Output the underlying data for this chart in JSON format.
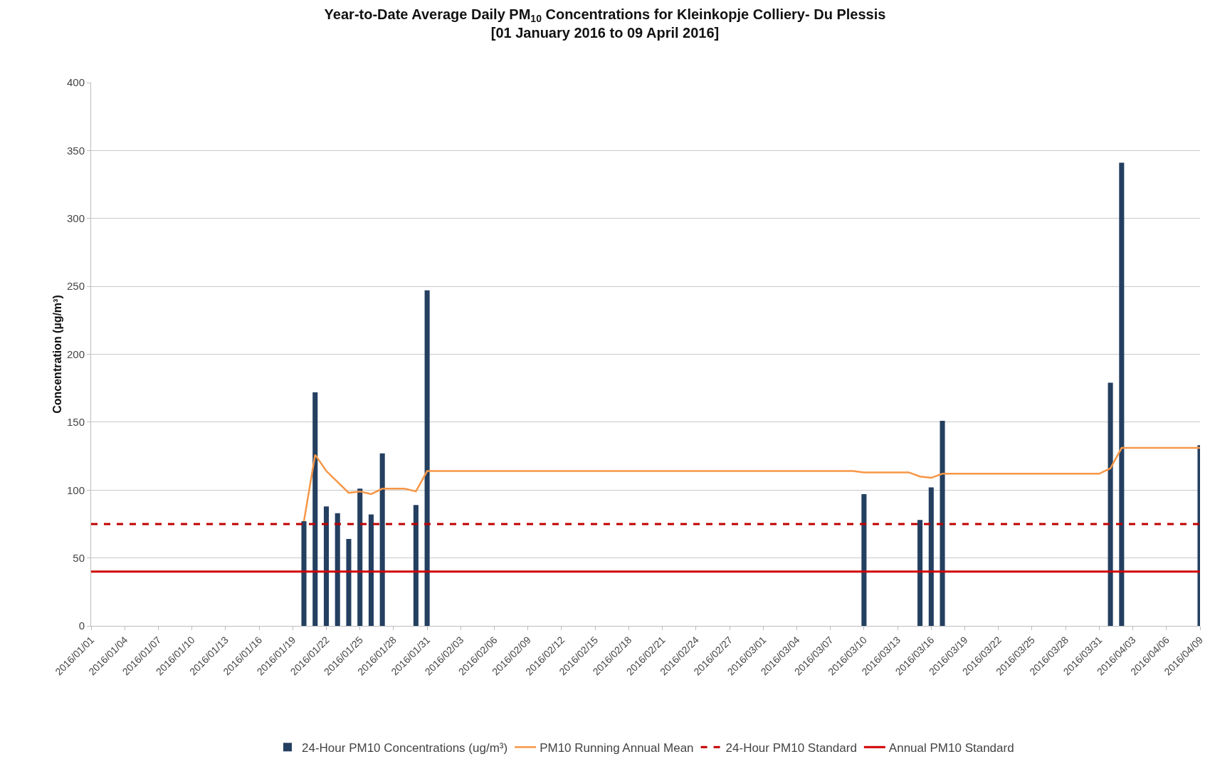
{
  "chart_data": {
    "type": "bar",
    "title": "Year-to-Date Average Daily PM$_{10}$ Concentrations for Kleinkopje Colliery- Du Plessis",
    "subtitle": "[01 January 2016 to 09 April 2016]",
    "ylabel": "Concentration (µg/m³)",
    "series": [
      {
        "name": "24-Hour PM10 Concentrations (ug/m³)",
        "color": "#243f60",
        "x": [
          "2016-01-20",
          "2016-01-21",
          "2016-01-22",
          "2016-01-23",
          "2016-01-24",
          "2016-01-25",
          "2016-01-26",
          "2016-01-27",
          "2016-01-30",
          "2016-01-31",
          "2016-03-10",
          "2016-03-15",
          "2016-03-16",
          "2016-03-17",
          "2016-04-01",
          "2016-04-02",
          "2016-04-09"
        ],
        "values": [
          77,
          172,
          88,
          83,
          64,
          101,
          82,
          127,
          89,
          247,
          97,
          78,
          102,
          151,
          179,
          341,
          133
        ]
      },
      {
        "name": "PM10 Running Annual Mean",
        "type": "line",
        "color": "#f79646",
        "x": [
          "2016-01-20",
          "2016-01-21",
          "2016-01-22",
          "2016-01-23",
          "2016-01-24",
          "2016-01-25",
          "2016-01-26",
          "2016-01-27",
          "2016-01-28",
          "2016-01-29",
          "2016-01-30",
          "2016-01-31",
          "2016-03-09",
          "2016-03-10",
          "2016-03-14",
          "2016-03-15",
          "2016-03-16",
          "2016-03-17",
          "2016-03-31",
          "2016-04-01",
          "2016-04-02",
          "2016-04-09"
        ],
        "values": [
          77,
          126,
          114,
          106,
          98,
          99,
          97,
          101,
          101,
          101,
          99,
          114,
          114,
          113,
          113,
          110,
          109,
          112,
          112,
          116,
          131,
          131
        ]
      }
    ],
    "ref_lines": [
      {
        "axis": "y",
        "value": 75,
        "label": "24-Hour PM10 Standard",
        "color": "#c00000",
        "line_style": "dashed"
      },
      {
        "axis": "y",
        "value": 40,
        "label": "Annual PM10 Standard",
        "color": "#d00000",
        "line_style": "solid"
      }
    ],
    "xlim": [
      "2016-01-01",
      "2016-04-09"
    ],
    "xticks": [
      {
        "value": "2016-01-01",
        "label": "2016/01/01"
      },
      {
        "value": "2016-01-04",
        "label": "2016/01/04"
      },
      {
        "value": "2016-01-07",
        "label": "2016/01/07"
      },
      {
        "value": "2016-01-10",
        "label": "2016/01/10"
      },
      {
        "value": "2016-01-13",
        "label": "2016/01/13"
      },
      {
        "value": "2016-01-16",
        "label": "2016/01/16"
      },
      {
        "value": "2016-01-19",
        "label": "2016/01/19"
      },
      {
        "value": "2016-01-22",
        "label": "2016/01/22"
      },
      {
        "value": "2016-01-25",
        "label": "2016/01/25"
      },
      {
        "value": "2016-01-28",
        "label": "2016/01/28"
      },
      {
        "value": "2016-01-31",
        "label": "2016/01/31"
      },
      {
        "value": "2016-02-03",
        "label": "2016/02/03"
      },
      {
        "value": "2016-02-06",
        "label": "2016/02/06"
      },
      {
        "value": "2016-02-09",
        "label": "2016/02/09"
      },
      {
        "value": "2016-02-12",
        "label": "2016/02/12"
      },
      {
        "value": "2016-02-15",
        "label": "2016/02/15"
      },
      {
        "value": "2016-02-18",
        "label": "2016/02/18"
      },
      {
        "value": "2016-02-21",
        "label": "2016/02/21"
      },
      {
        "value": "2016-02-24",
        "label": "2016/02/24"
      },
      {
        "value": "2016-02-27",
        "label": "2016/02/27"
      },
      {
        "value": "2016-03-01",
        "label": "2016/03/01"
      },
      {
        "value": "2016-03-04",
        "label": "2016/03/04"
      },
      {
        "value": "2016-03-07",
        "label": "2016/03/07"
      },
      {
        "value": "2016-03-10",
        "label": "2016/03/10"
      },
      {
        "value": "2016-03-13",
        "label": "2016/03/13"
      },
      {
        "value": "2016-03-16",
        "label": "2016/03/16"
      },
      {
        "value": "2016-03-19",
        "label": "2016/03/19"
      },
      {
        "value": "2016-03-22",
        "label": "2016/03/22"
      },
      {
        "value": "2016-03-25",
        "label": "2016/03/25"
      },
      {
        "value": "2016-03-28",
        "label": "2016/03/28"
      },
      {
        "value": "2016-03-31",
        "label": "2016/03/31"
      },
      {
        "value": "2016-04-03",
        "label": "2016/04/03"
      },
      {
        "value": "2016-04-06",
        "label": "2016/04/06"
      },
      {
        "value": "2016-04-09",
        "label": "2016/04/09"
      }
    ],
    "ylim": [
      0,
      400
    ],
    "yticks": [
      0,
      50,
      100,
      150,
      200,
      250,
      300,
      350,
      400
    ],
    "grid": "y",
    "legend": "bottom"
  }
}
